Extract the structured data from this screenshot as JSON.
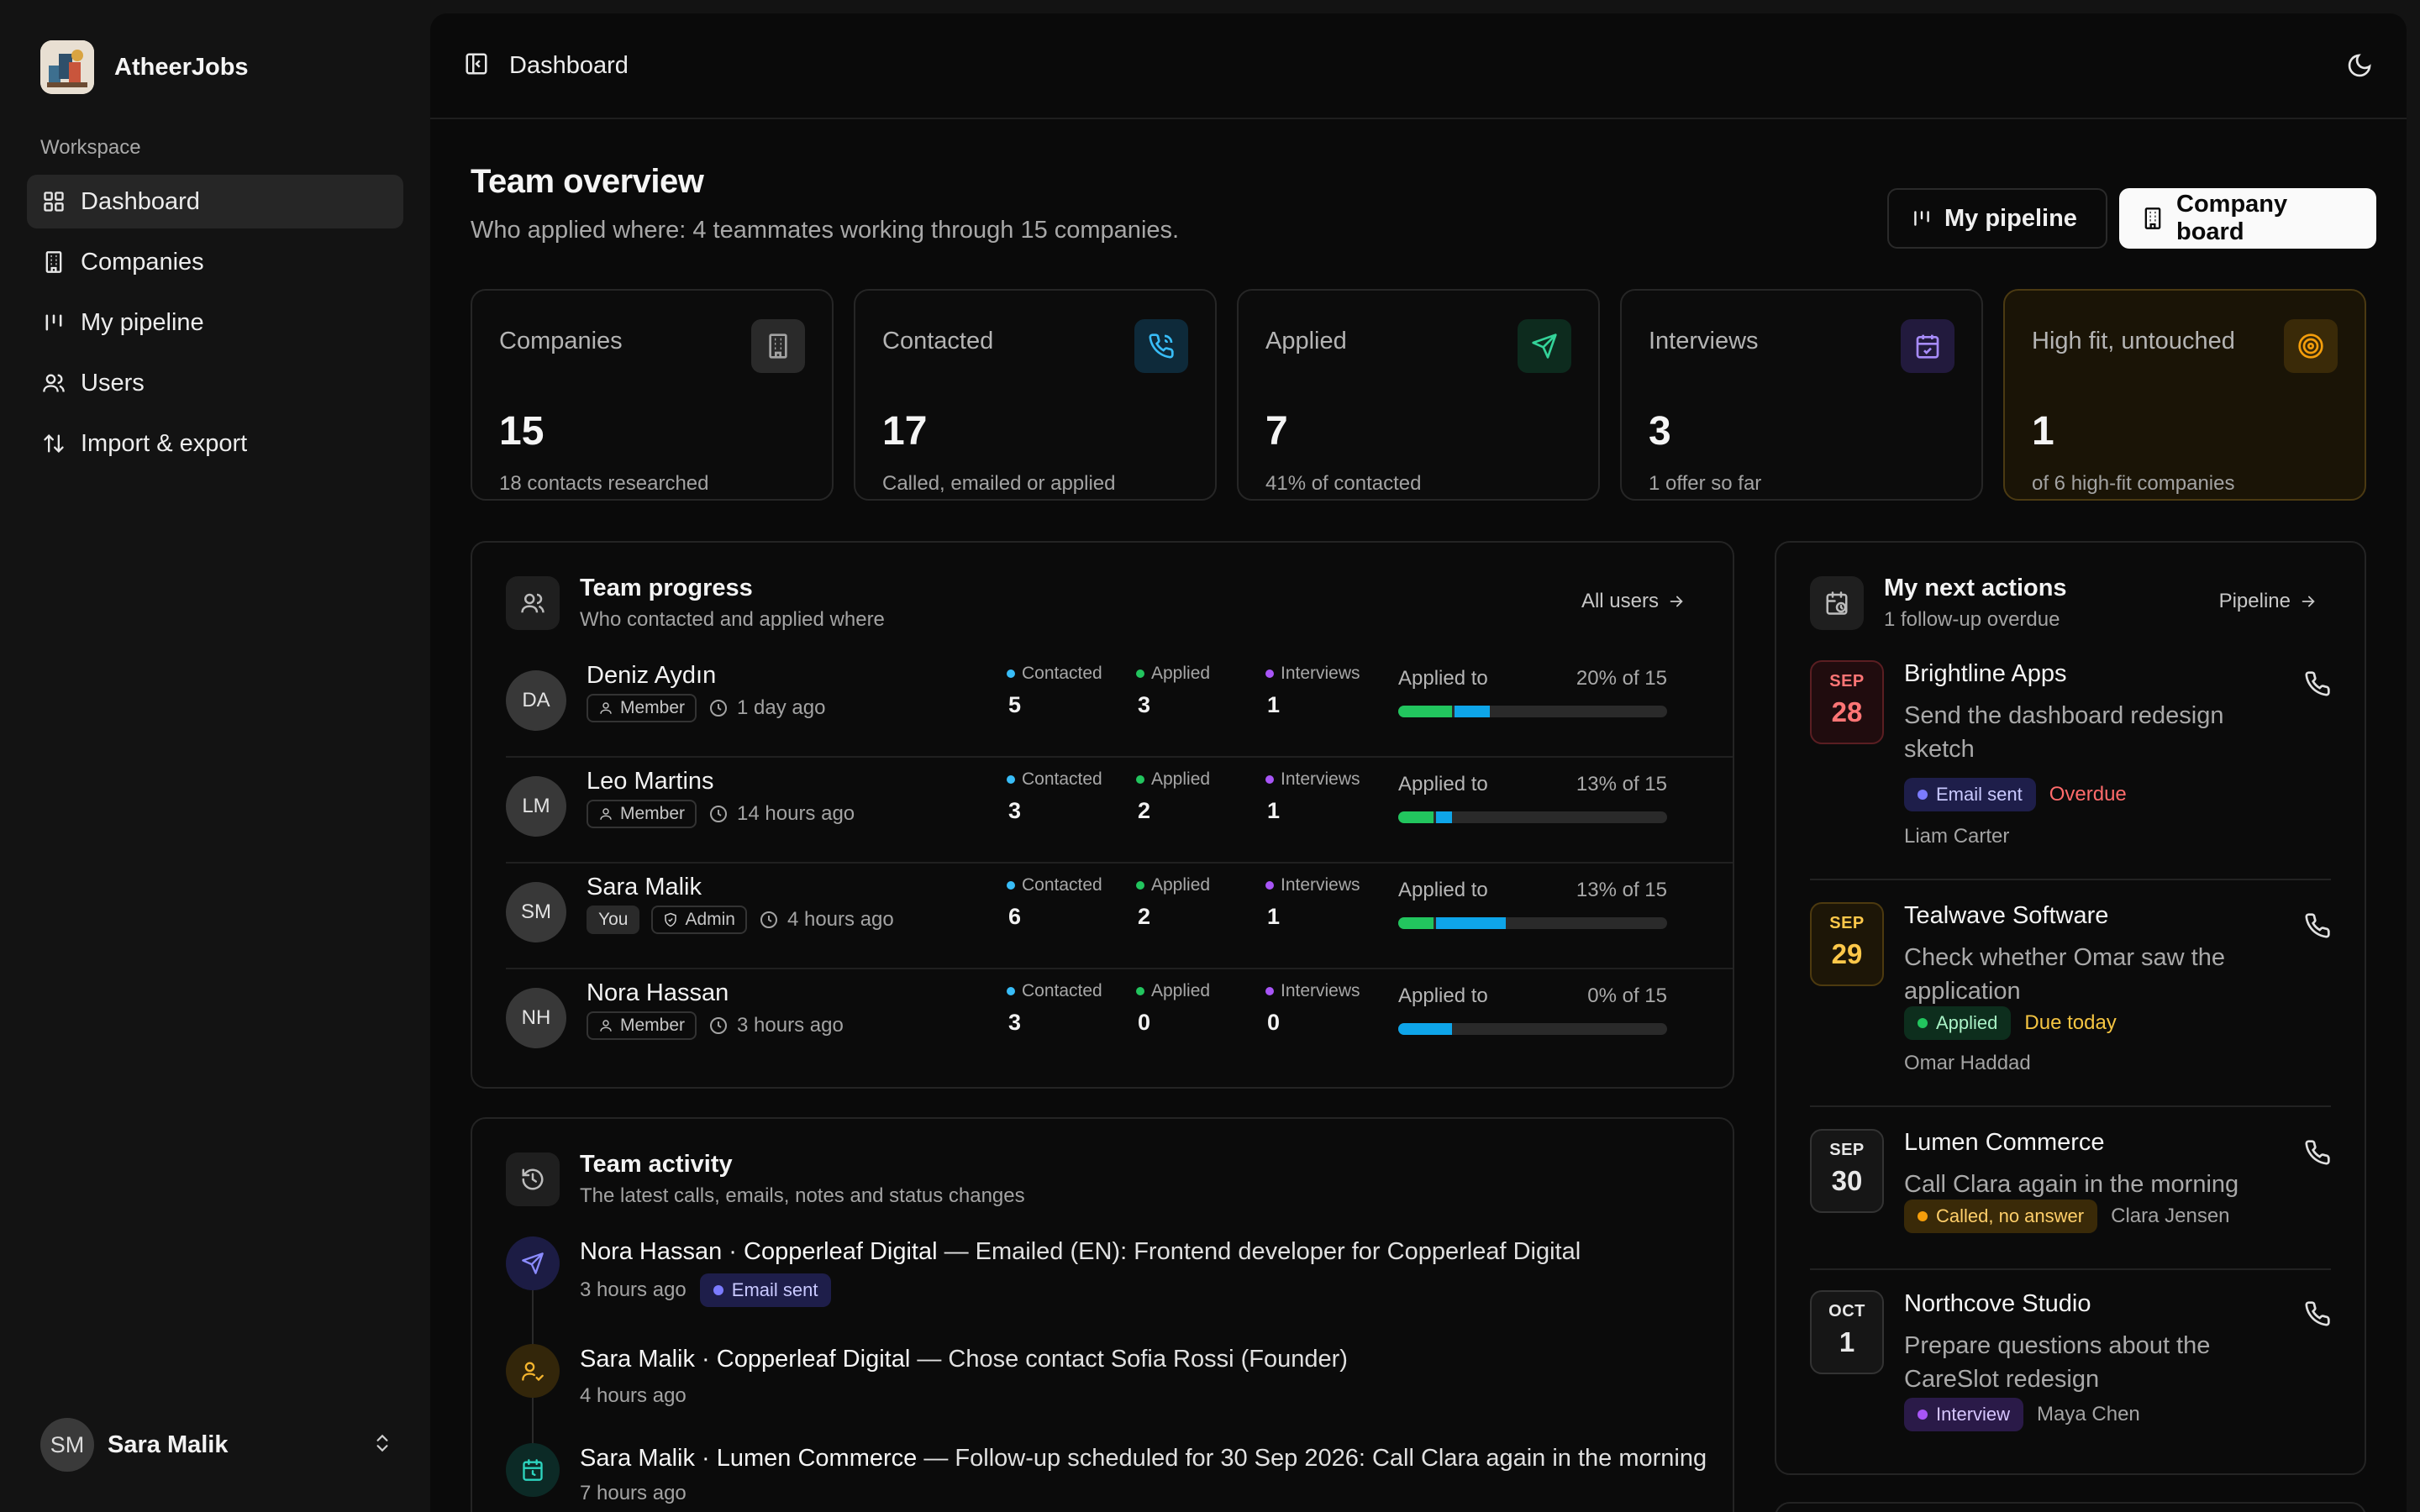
{
  "app": {
    "name": "AtheerJobs"
  },
  "sidebar": {
    "section_label": "Workspace",
    "items": [
      {
        "label": "Dashboard",
        "icon": "grid-icon",
        "active": true
      },
      {
        "label": "Companies",
        "icon": "building-icon",
        "active": false
      },
      {
        "label": "My pipeline",
        "icon": "pipeline-icon",
        "active": false
      },
      {
        "label": "Users",
        "icon": "users-icon",
        "active": false
      },
      {
        "label": "Import & export",
        "icon": "arrows-updown-icon",
        "active": false
      }
    ],
    "user": {
      "initials": "SM",
      "name": "Sara Malik"
    }
  },
  "topbar": {
    "breadcrumb": "Dashboard"
  },
  "header": {
    "title": "Team overview",
    "subtitle": "Who applied where: 4 teammates working through 15 companies.",
    "pipeline_button": "My pipeline",
    "board_button": "Company board"
  },
  "stats": [
    {
      "label": "Companies",
      "value": "15",
      "hint": "18 contacts researched",
      "icon": "building-icon",
      "color": "#9ca3af"
    },
    {
      "label": "Contacted",
      "value": "17",
      "hint": "Called, emailed or applied",
      "icon": "phone-icon",
      "color": "#38bdf8"
    },
    {
      "label": "Applied",
      "value": "7",
      "hint": "41% of contacted",
      "icon": "send-icon",
      "color": "#34d399"
    },
    {
      "label": "Interviews",
      "value": "3",
      "hint": "1 offer so far",
      "icon": "calendar-icon",
      "color": "#a78bfa"
    },
    {
      "label": "High fit, untouched",
      "value": "1",
      "hint": "of 6 high-fit companies",
      "icon": "target-icon",
      "color": "#f59e0b"
    }
  ],
  "team_progress": {
    "title": "Team progress",
    "subtitle": "Who contacted and applied where",
    "link": "All users",
    "labels": {
      "contacted": "Contacted",
      "applied": "Applied",
      "interviews": "Interviews",
      "applied_to": "Applied to"
    },
    "members": [
      {
        "initials": "DA",
        "name": "Deniz Aydın",
        "you": "",
        "role": "Member",
        "time": "1 day ago",
        "contacted": "5",
        "applied": "3",
        "interviews": "1",
        "pct": "20% of 15",
        "green": 0.2,
        "blue": 0.13
      },
      {
        "initials": "LM",
        "name": "Leo Martins",
        "you": "",
        "role": "Member",
        "time": "14 hours ago",
        "contacted": "3",
        "applied": "2",
        "interviews": "1",
        "pct": "13% of 15",
        "green": 0.13,
        "blue": 0.06
      },
      {
        "initials": "SM",
        "name": "Sara Malik",
        "you": "You",
        "role": "Admin",
        "time": "4 hours ago",
        "contacted": "6",
        "applied": "2",
        "interviews": "1",
        "pct": "13% of 15",
        "green": 0.13,
        "blue": 0.26
      },
      {
        "initials": "NH",
        "name": "Nora Hassan",
        "you": "",
        "role": "Member",
        "time": "3 hours ago",
        "contacted": "3",
        "applied": "0",
        "interviews": "0",
        "pct": "0% of 15",
        "green": 0,
        "blue": 0.2
      }
    ]
  },
  "team_activity": {
    "title": "Team activity",
    "subtitle": "The latest calls, emails, notes and status changes",
    "items": [
      {
        "actor": "Nora Hassan · Copperleaf Digital",
        "text": "— Emailed (EN): Frontend developer for Copperleaf Digital",
        "time": "3 hours ago",
        "tag": "Email sent"
      },
      {
        "actor": "Sara Malik · Copperleaf Digital",
        "text": "— Chose contact Sofia Rossi (Founder)",
        "time": "4 hours ago",
        "tag": ""
      },
      {
        "actor": "Sara Malik · Lumen Commerce",
        "text": "— Follow-up scheduled for 30 Sep 2026: Call Clara again in the morning",
        "time": "7 hours ago",
        "tag": ""
      }
    ]
  },
  "next_actions": {
    "title": "My next actions",
    "subtitle": "1 follow-up overdue",
    "link": "Pipeline",
    "items": [
      {
        "month": "SEP",
        "day": "28",
        "company": "Brightline Apps",
        "desc": "Send the dashboard redesign sketch",
        "tag": "Email sent",
        "status": "Overdue",
        "person": "Liam Carter"
      },
      {
        "month": "SEP",
        "day": "29",
        "company": "Tealwave Software",
        "desc": "Check whether Omar saw the application",
        "tag": "Applied",
        "status": "Due today",
        "person": "Omar Haddad"
      },
      {
        "month": "SEP",
        "day": "30",
        "company": "Lumen Commerce",
        "desc": "Call Clara again in the morning",
        "tag": "Called, no answer",
        "status": "",
        "person": "Clara Jensen"
      },
      {
        "month": "OCT",
        "day": "1",
        "company": "Northcove Studio",
        "desc": "Prepare questions about the CareSlot redesign",
        "tag": "Interview",
        "status": "",
        "person": "Maya Chen"
      }
    ]
  }
}
